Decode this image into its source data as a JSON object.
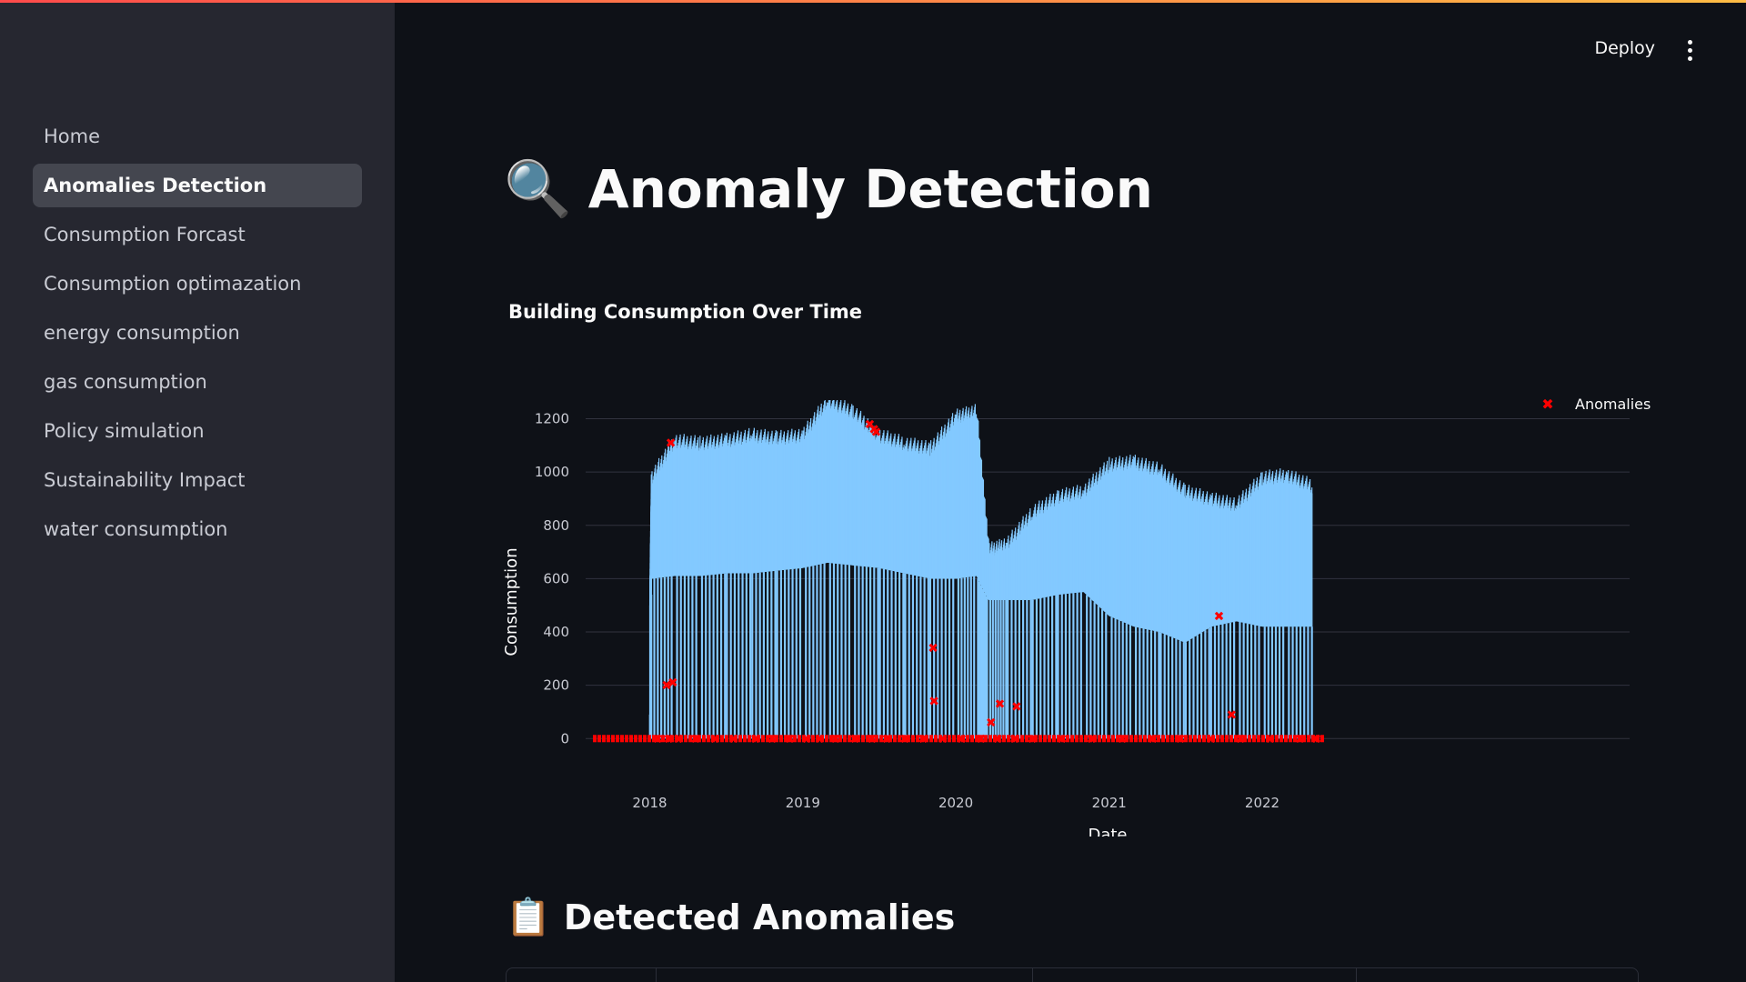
{
  "sidebar": {
    "items": [
      {
        "label": "Home",
        "active": false
      },
      {
        "label": "Anomalies Detection",
        "active": true
      },
      {
        "label": "Consumption Forcast",
        "active": false
      },
      {
        "label": "Consumption optimazation",
        "active": false
      },
      {
        "label": "energy consumption",
        "active": false
      },
      {
        "label": "gas consumption",
        "active": false
      },
      {
        "label": "Policy simulation",
        "active": false
      },
      {
        "label": "Sustainability Impact",
        "active": false
      },
      {
        "label": "water consumption",
        "active": false
      }
    ]
  },
  "header": {
    "deploy_label": "Deploy",
    "menu_icon": "vertical-ellipsis-icon"
  },
  "main": {
    "title_icon": "magnifying-glass-icon",
    "title": "Anomaly Detection",
    "chart_heading": "Building Consumption Over Time",
    "section_icon": "clipboard-icon",
    "section_title": "Detected Anomalies"
  },
  "chart_data": {
    "type": "area",
    "xlabel": "Date",
    "ylabel": "Consumption",
    "x_ticks": [
      "2018",
      "2019",
      "2020",
      "2021",
      "2022"
    ],
    "y_ticks": [
      0,
      200,
      400,
      600,
      800,
      1000,
      1200
    ],
    "ylim": [
      -40,
      1270
    ],
    "xlim": [
      "2017-08-01",
      "2022-12-01"
    ],
    "grid": true,
    "legend_position": "top-right",
    "series": [
      {
        "color": "#83c9ff",
        "x": [
          "2018-01-01",
          "2018-01-05",
          "2018-03-01",
          "2018-05-01",
          "2018-07-01",
          "2018-09-01",
          "2018-11-01",
          "2019-01-01",
          "2019-03-01",
          "2019-05-01",
          "2019-07-01",
          "2019-09-01",
          "2019-11-01",
          "2020-01-01",
          "2020-02-20",
          "2020-03-20",
          "2020-05-01",
          "2020-07-01",
          "2020-09-01",
          "2020-11-01",
          "2021-01-01",
          "2021-03-01",
          "2021-05-01",
          "2021-07-01",
          "2021-09-01",
          "2021-11-01",
          "2022-01-01",
          "2022-03-01",
          "2022-05-01"
        ],
        "high": [
          500,
          950,
          1090,
          1080,
          1090,
          1110,
          1100,
          1110,
          1240,
          1200,
          1110,
          1080,
          1060,
          1180,
          1200,
          680,
          700,
          820,
          880,
          900,
          1000,
          1010,
          980,
          900,
          870,
          850,
          950,
          960,
          920
        ],
        "low": [
          0,
          600,
          610,
          610,
          620,
          620,
          630,
          640,
          660,
          650,
          640,
          620,
          600,
          600,
          610,
          520,
          520,
          520,
          540,
          550,
          460,
          420,
          400,
          360,
          420,
          440,
          420,
          420,
          420
        ]
      },
      {
        "name": "Anomalies",
        "type": "scatter",
        "color": "#ff0000",
        "x": [
          "2018-01-20",
          "2018-02-15",
          "2018-03-10",
          "2018-04-20",
          "2018-06-05",
          "2018-07-20",
          "2018-09-10",
          "2018-10-20",
          "2018-12-01",
          "2019-01-10",
          "2019-02-10",
          "2019-03-20",
          "2019-05-05",
          "2019-06-15",
          "2019-07-20",
          "2019-09-01",
          "2019-10-15",
          "2019-12-01",
          "2020-01-15",
          "2020-03-01",
          "2020-04-10",
          "2020-05-20",
          "2020-07-01",
          "2020-09-10",
          "2020-11-20",
          "2021-02-01",
          "2021-04-15",
          "2021-06-20",
          "2021-09-01",
          "2021-11-10",
          "2022-01-20",
          "2022-04-01",
          "2022-05-10",
          "2018-02-10",
          "2018-02-25",
          "2019-06-10",
          "2019-06-20",
          "2019-11-08",
          "2019-11-10",
          "2020-03-25",
          "2020-04-15",
          "2020-05-25",
          "2021-09-20",
          "2021-10-20",
          "2018-02-20",
          "2019-06-25"
        ],
        "y": [
          0,
          0,
          0,
          0,
          0,
          0,
          0,
          0,
          0,
          0,
          0,
          0,
          0,
          0,
          0,
          0,
          0,
          0,
          0,
          0,
          0,
          0,
          0,
          0,
          0,
          0,
          0,
          0,
          0,
          0,
          0,
          0,
          0,
          200,
          210,
          1180,
          1160,
          340,
          140,
          60,
          130,
          120,
          460,
          90,
          1110,
          1150
        ]
      }
    ]
  }
}
